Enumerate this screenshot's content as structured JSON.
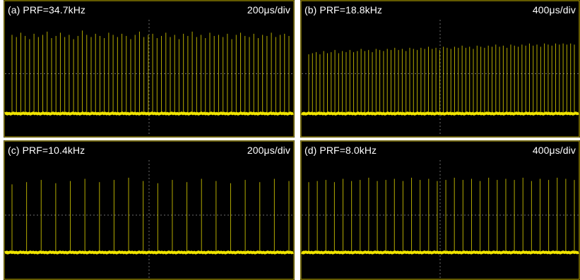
{
  "colors": {
    "background": "#000000",
    "trace": "#f0e400",
    "grid": "#6e6e6e",
    "frame": "#c8b400",
    "text": "#ffffff"
  },
  "chart_data": [
    {
      "type": "line",
      "panel_label": "(a) PRF=34.7kHz",
      "timebase": "200μs/div",
      "prf_khz": 34.7,
      "time_per_div_us": 200,
      "baseline_level": 0.13,
      "pulse_count": 64,
      "pulse_amplitudes": [
        0.86,
        0.84,
        0.88,
        0.85,
        0.82,
        0.87,
        0.84,
        0.86,
        0.89,
        0.83,
        0.85,
        0.88,
        0.84,
        0.86,
        0.82,
        0.85,
        0.9,
        0.86,
        0.84,
        0.87,
        0.85,
        0.83,
        0.88,
        0.86,
        0.84,
        0.87,
        0.85,
        0.82,
        0.86,
        0.89,
        0.84,
        0.86,
        0.87,
        0.83,
        0.85,
        0.88,
        0.84,
        0.86,
        0.82,
        0.87,
        0.85,
        0.89,
        0.84,
        0.86,
        0.83,
        0.88,
        0.85,
        0.86,
        0.84,
        0.87,
        0.82,
        0.86,
        0.88,
        0.85,
        0.84,
        0.87,
        0.83,
        0.86,
        0.85,
        0.88,
        0.84,
        0.86,
        0.87,
        0.85
      ]
    },
    {
      "type": "line",
      "panel_label": "(b) PRF=18.8kHz",
      "timebase": "400μs/div",
      "prf_khz": 18.8,
      "time_per_div_us": 400,
      "baseline_level": 0.13,
      "pulse_count": 72,
      "pulse_amplitudes": [
        0.68,
        0.69,
        0.7,
        0.68,
        0.71,
        0.69,
        0.7,
        0.72,
        0.69,
        0.71,
        0.7,
        0.72,
        0.7,
        0.71,
        0.73,
        0.71,
        0.72,
        0.7,
        0.73,
        0.72,
        0.71,
        0.73,
        0.72,
        0.74,
        0.72,
        0.73,
        0.71,
        0.74,
        0.73,
        0.72,
        0.74,
        0.73,
        0.75,
        0.73,
        0.74,
        0.72,
        0.75,
        0.74,
        0.73,
        0.75,
        0.74,
        0.76,
        0.74,
        0.75,
        0.73,
        0.76,
        0.75,
        0.74,
        0.76,
        0.75,
        0.77,
        0.75,
        0.76,
        0.74,
        0.77,
        0.76,
        0.75,
        0.77,
        0.76,
        0.78,
        0.76,
        0.77,
        0.75,
        0.78,
        0.77,
        0.76,
        0.78,
        0.77,
        0.78,
        0.77,
        0.78,
        0.77
      ]
    },
    {
      "type": "line",
      "panel_label": "(c) PRF=10.4kHz",
      "timebase": "200μs/div",
      "prf_khz": 10.4,
      "time_per_div_us": 200,
      "baseline_level": 0.16,
      "pulse_count": 20,
      "pulse_amplitudes": [
        0.78,
        0.8,
        0.82,
        0.79,
        0.81,
        0.83,
        0.8,
        0.82,
        0.84,
        0.81,
        0.79,
        0.82,
        0.8,
        0.83,
        0.81,
        0.79,
        0.82,
        0.8,
        0.83,
        0.81
      ]
    },
    {
      "type": "line",
      "panel_label": "(d) PRF=8.0kHz",
      "timebase": "400μs/div",
      "prf_khz": 8.0,
      "time_per_div_us": 400,
      "baseline_level": 0.16,
      "pulse_count": 32,
      "pulse_amplitudes": [
        0.8,
        0.81,
        0.82,
        0.8,
        0.83,
        0.81,
        0.82,
        0.84,
        0.81,
        0.82,
        0.83,
        0.81,
        0.84,
        0.82,
        0.83,
        0.81,
        0.82,
        0.84,
        0.82,
        0.83,
        0.81,
        0.84,
        0.82,
        0.83,
        0.82,
        0.84,
        0.81,
        0.83,
        0.82,
        0.84,
        0.83,
        0.82
      ]
    }
  ]
}
